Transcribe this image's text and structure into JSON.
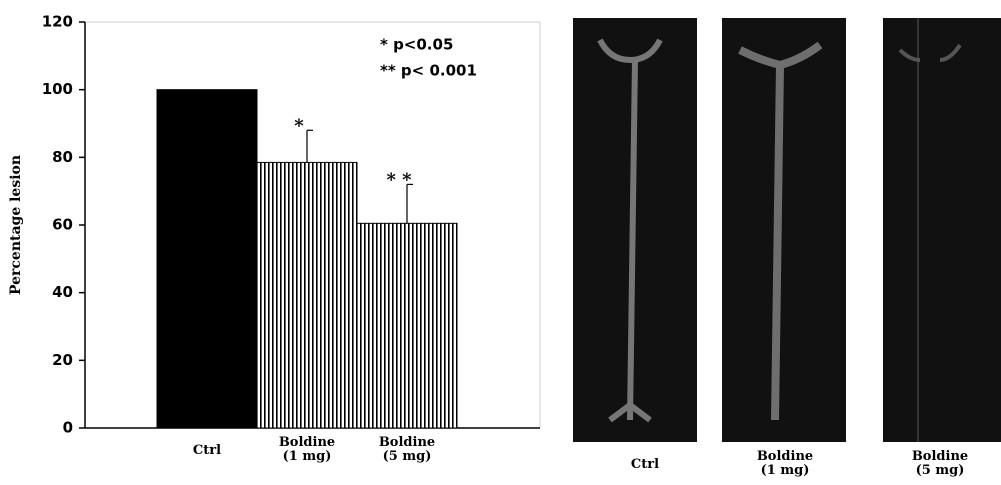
{
  "chart_data": {
    "type": "bar",
    "ylabel": "Percentage lesion",
    "categories": [
      "Ctrl",
      "Boldine (1 mg)",
      "Boldine (5 mg)"
    ],
    "values": [
      100,
      78.5,
      60.5
    ],
    "errors": [
      null,
      9.5,
      11.5
    ],
    "significance": [
      null,
      "*",
      "* *"
    ],
    "legend": [
      "* p<0.05",
      "** p< 0.001"
    ],
    "ylim": [
      0,
      120
    ],
    "yticks": [
      0,
      20,
      40,
      60,
      80,
      100,
      120
    ]
  },
  "images": [
    {
      "label": "Ctrl"
    },
    {
      "label": "Boldine (1 mg)"
    },
    {
      "label": "Boldine (5 mg)"
    }
  ]
}
